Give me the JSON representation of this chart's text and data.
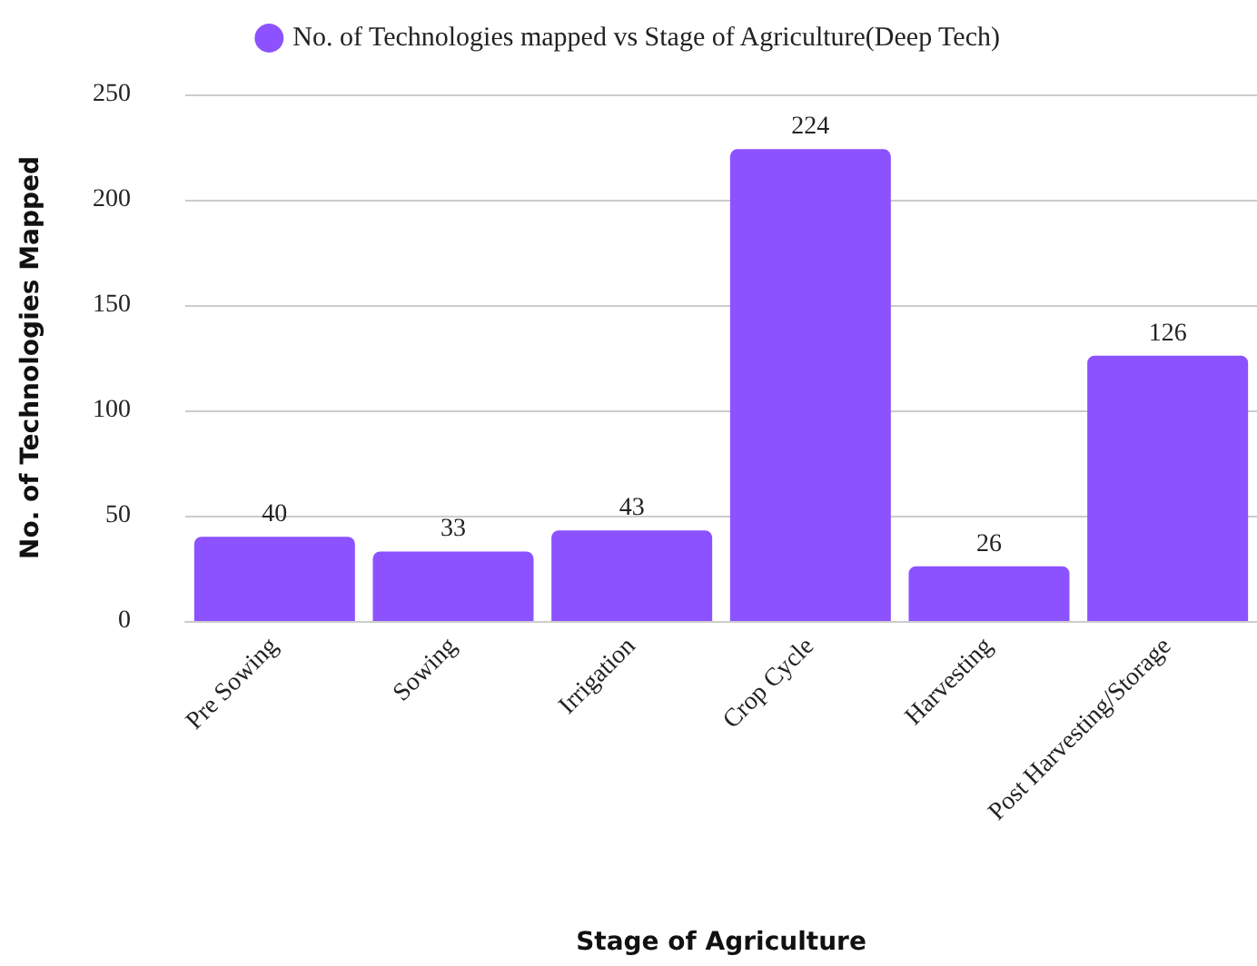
{
  "chart_data": {
    "type": "bar",
    "xlabel": "Stage of Agriculture",
    "ylabel": "No. of Technologies Mapped",
    "categories": [
      "Pre Sowing",
      "Sowing",
      "Irrigation",
      "Crop Cycle",
      "Harvesting",
      "Post Harvesting/Storage"
    ],
    "series": [
      {
        "name": "No. of Technologies mapped vs Stage of Agriculture(Deep Tech)",
        "color": "#8c52ff",
        "values": [
          40,
          33,
          43,
          224,
          26,
          126
        ]
      }
    ],
    "ylim": [
      0,
      250
    ],
    "yticks": [
      0,
      50,
      100,
      150,
      200,
      250
    ],
    "grid": "y",
    "legend": "top",
    "data_labels": true
  }
}
